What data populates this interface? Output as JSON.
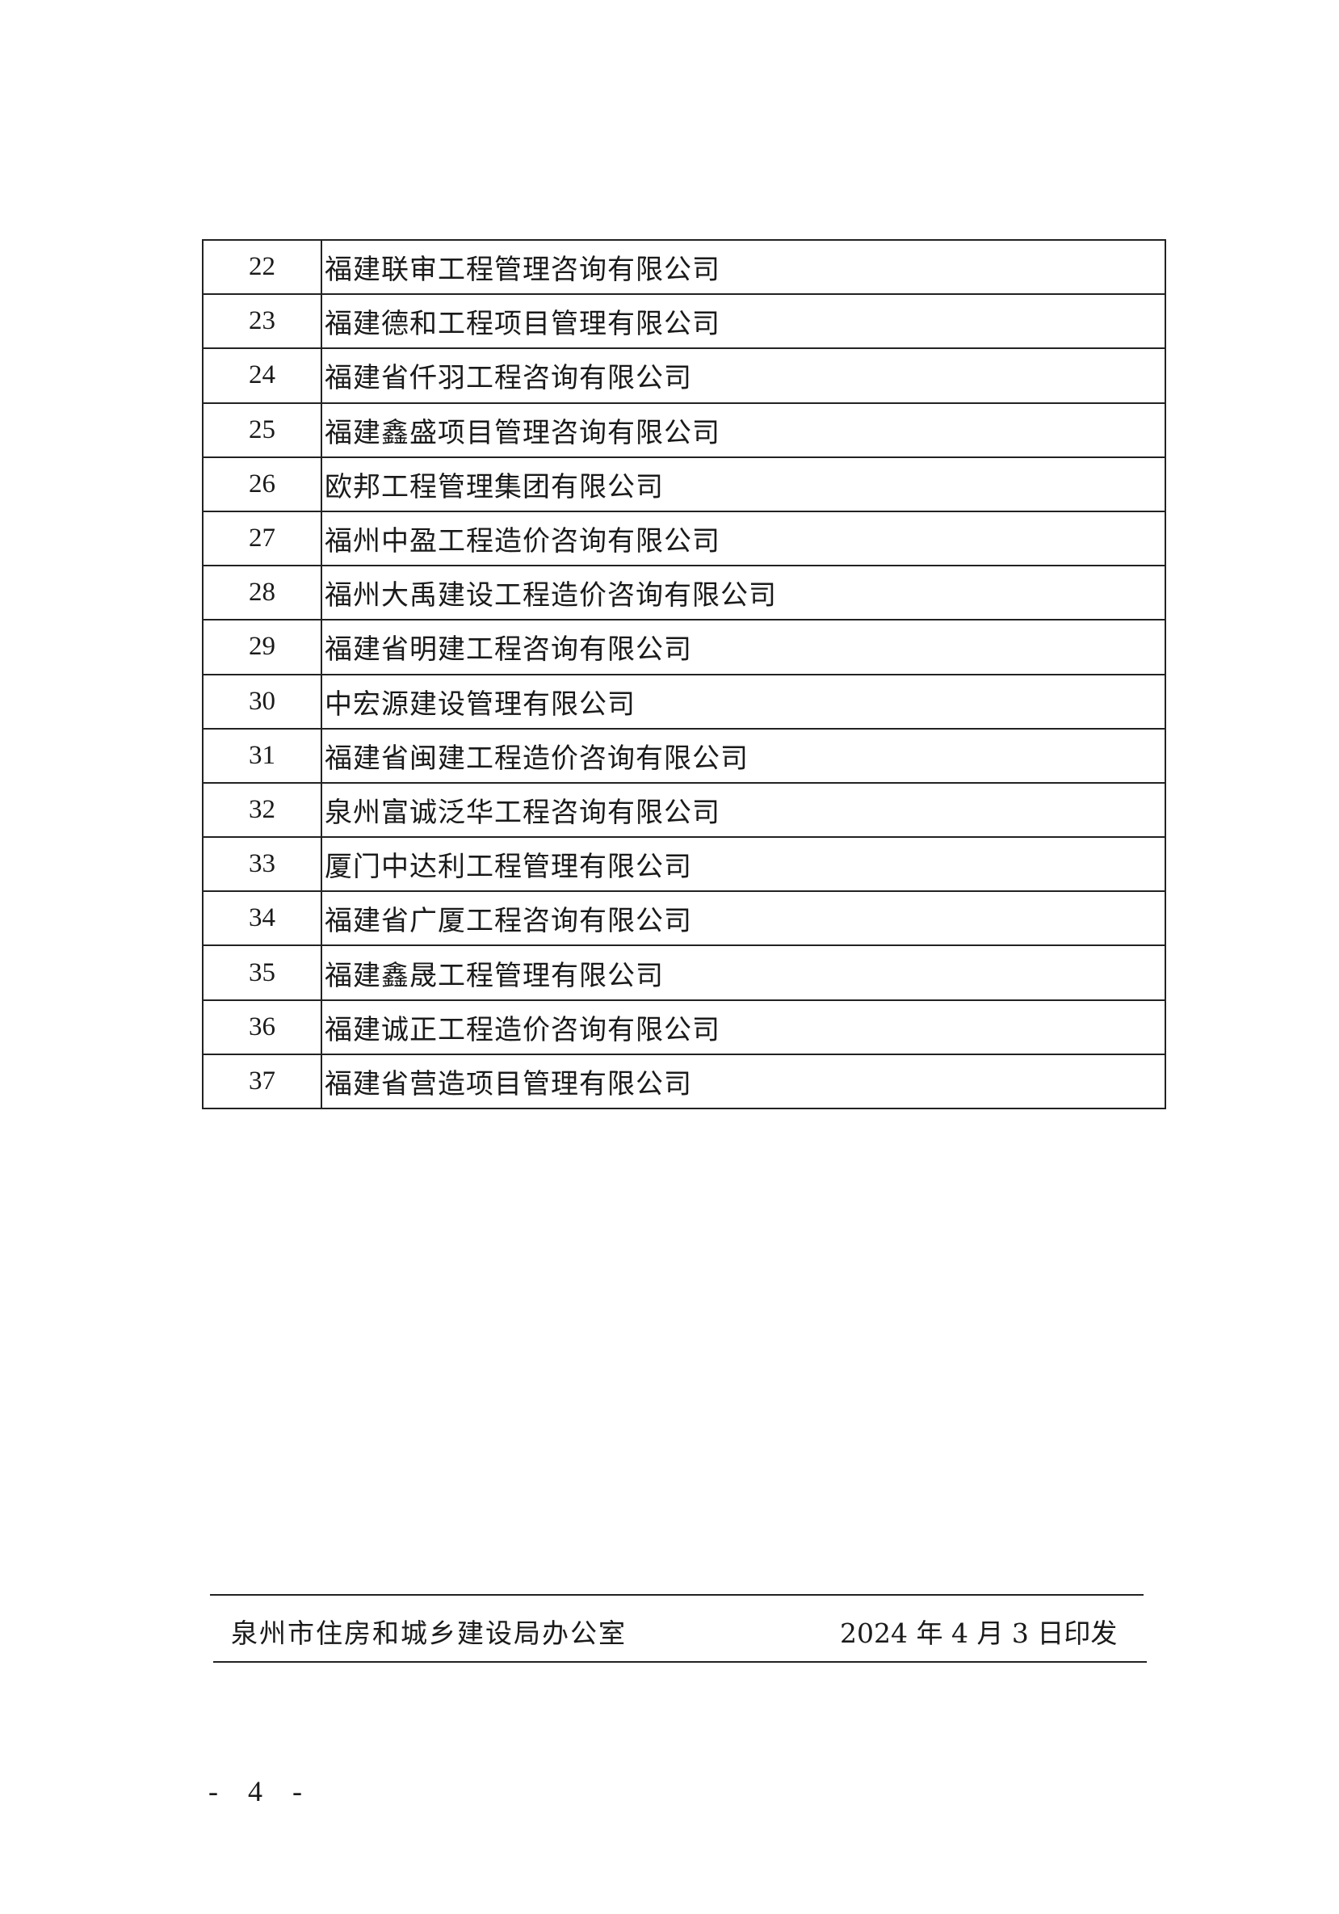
{
  "table": {
    "rows": [
      {
        "no": "22",
        "name": "福建联审工程管理咨询有限公司"
      },
      {
        "no": "23",
        "name": "福建德和工程项目管理有限公司"
      },
      {
        "no": "24",
        "name": "福建省仟羽工程咨询有限公司"
      },
      {
        "no": "25",
        "name": "福建鑫盛项目管理咨询有限公司"
      },
      {
        "no": "26",
        "name": "欧邦工程管理集团有限公司"
      },
      {
        "no": "27",
        "name": "福州中盈工程造价咨询有限公司"
      },
      {
        "no": "28",
        "name": "福州大禹建设工程造价咨询有限公司"
      },
      {
        "no": "29",
        "name": "福建省明建工程咨询有限公司"
      },
      {
        "no": "30",
        "name": "中宏源建设管理有限公司"
      },
      {
        "no": "31",
        "name": "福建省闽建工程造价咨询有限公司"
      },
      {
        "no": "32",
        "name": "泉州富诚泛华工程咨询有限公司"
      },
      {
        "no": "33",
        "name": "厦门中达利工程管理有限公司"
      },
      {
        "no": "34",
        "name": "福建省广厦工程咨询有限公司"
      },
      {
        "no": "35",
        "name": "福建鑫晟工程管理有限公司"
      },
      {
        "no": "36",
        "name": "福建诚正工程造价咨询有限公司"
      },
      {
        "no": "37",
        "name": "福建省营造项目管理有限公司"
      }
    ]
  },
  "footer": {
    "issuer": "泉州市住房和城乡建设局办公室",
    "issue_date": "2024 年 4 月 3 日印发"
  },
  "page_number": "- 4 -"
}
